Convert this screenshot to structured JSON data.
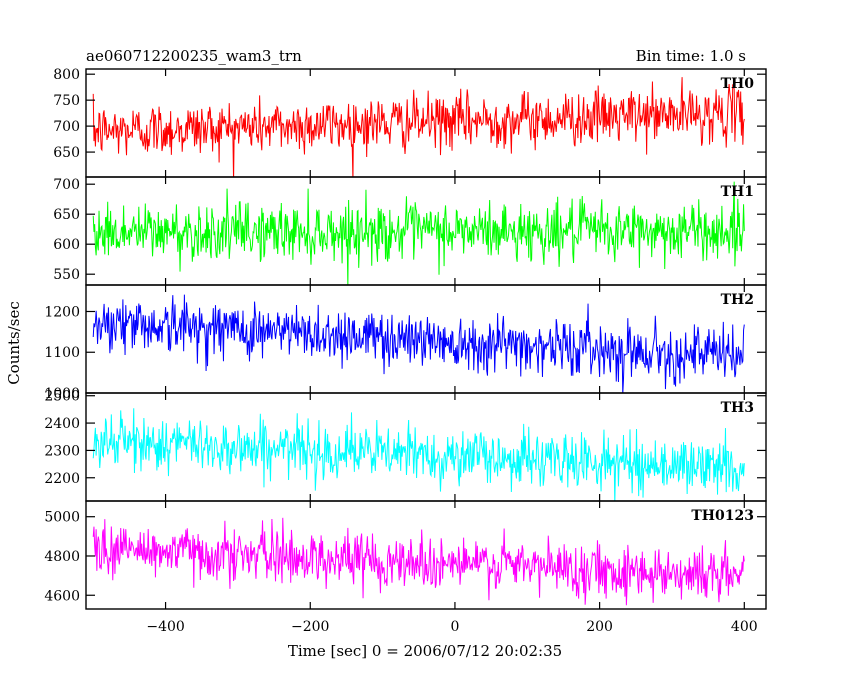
{
  "header": {
    "left": "ae060712200235_wam3_trn",
    "right": "Bin time: 1.0 s"
  },
  "chart_data": {
    "type": "line",
    "title": "ae060712200235_wam3_trn",
    "subtitle": "Bin time: 1.0 s",
    "xlabel": "Time [sec] 0 = 2006/07/12 20:02:35",
    "ylabel": "Counts/sec",
    "xlim": [
      -510,
      430
    ],
    "x_ticks": [
      -400,
      -200,
      0,
      200,
      400
    ],
    "x_tick_labels": [
      "−400",
      "−200",
      "0",
      "200",
      "400"
    ],
    "x_data_range": [
      -500,
      400
    ],
    "bin_time_s": 1.0,
    "grid": false,
    "panels": [
      {
        "name": "TH0",
        "color": "#ff0000",
        "ylim": [
          602,
          810
        ],
        "yticks": [
          650,
          700,
          750,
          800
        ],
        "trend_start": 690,
        "trend_end": 725,
        "noise_sd": 26
      },
      {
        "name": "TH1",
        "color": "#00ff00",
        "ylim": [
          532,
          712
        ],
        "yticks": [
          550,
          600,
          650,
          700
        ],
        "trend_start": 620,
        "trend_end": 622,
        "noise_sd": 24
      },
      {
        "name": "TH2",
        "color": "#0000ff",
        "ylim": [
          1000,
          1265
        ],
        "yticks": [
          1000,
          1100,
          1200
        ],
        "trend_start": 1175,
        "trend_end": 1090,
        "noise_sd": 34
      },
      {
        "name": "TH3",
        "color": "#00ffff",
        "ylim": [
          2115,
          2510
        ],
        "yticks": [
          2200,
          2300,
          2400,
          2500
        ],
        "trend_start": 2335,
        "trend_end": 2235,
        "noise_sd": 50
      },
      {
        "name": "TH0123",
        "color": "#ff00ff",
        "ylim": [
          4530,
          5080
        ],
        "yticks": [
          4600,
          4800,
          5000
        ],
        "trend_start": 4840,
        "trend_end": 4700,
        "noise_sd": 68
      }
    ]
  }
}
